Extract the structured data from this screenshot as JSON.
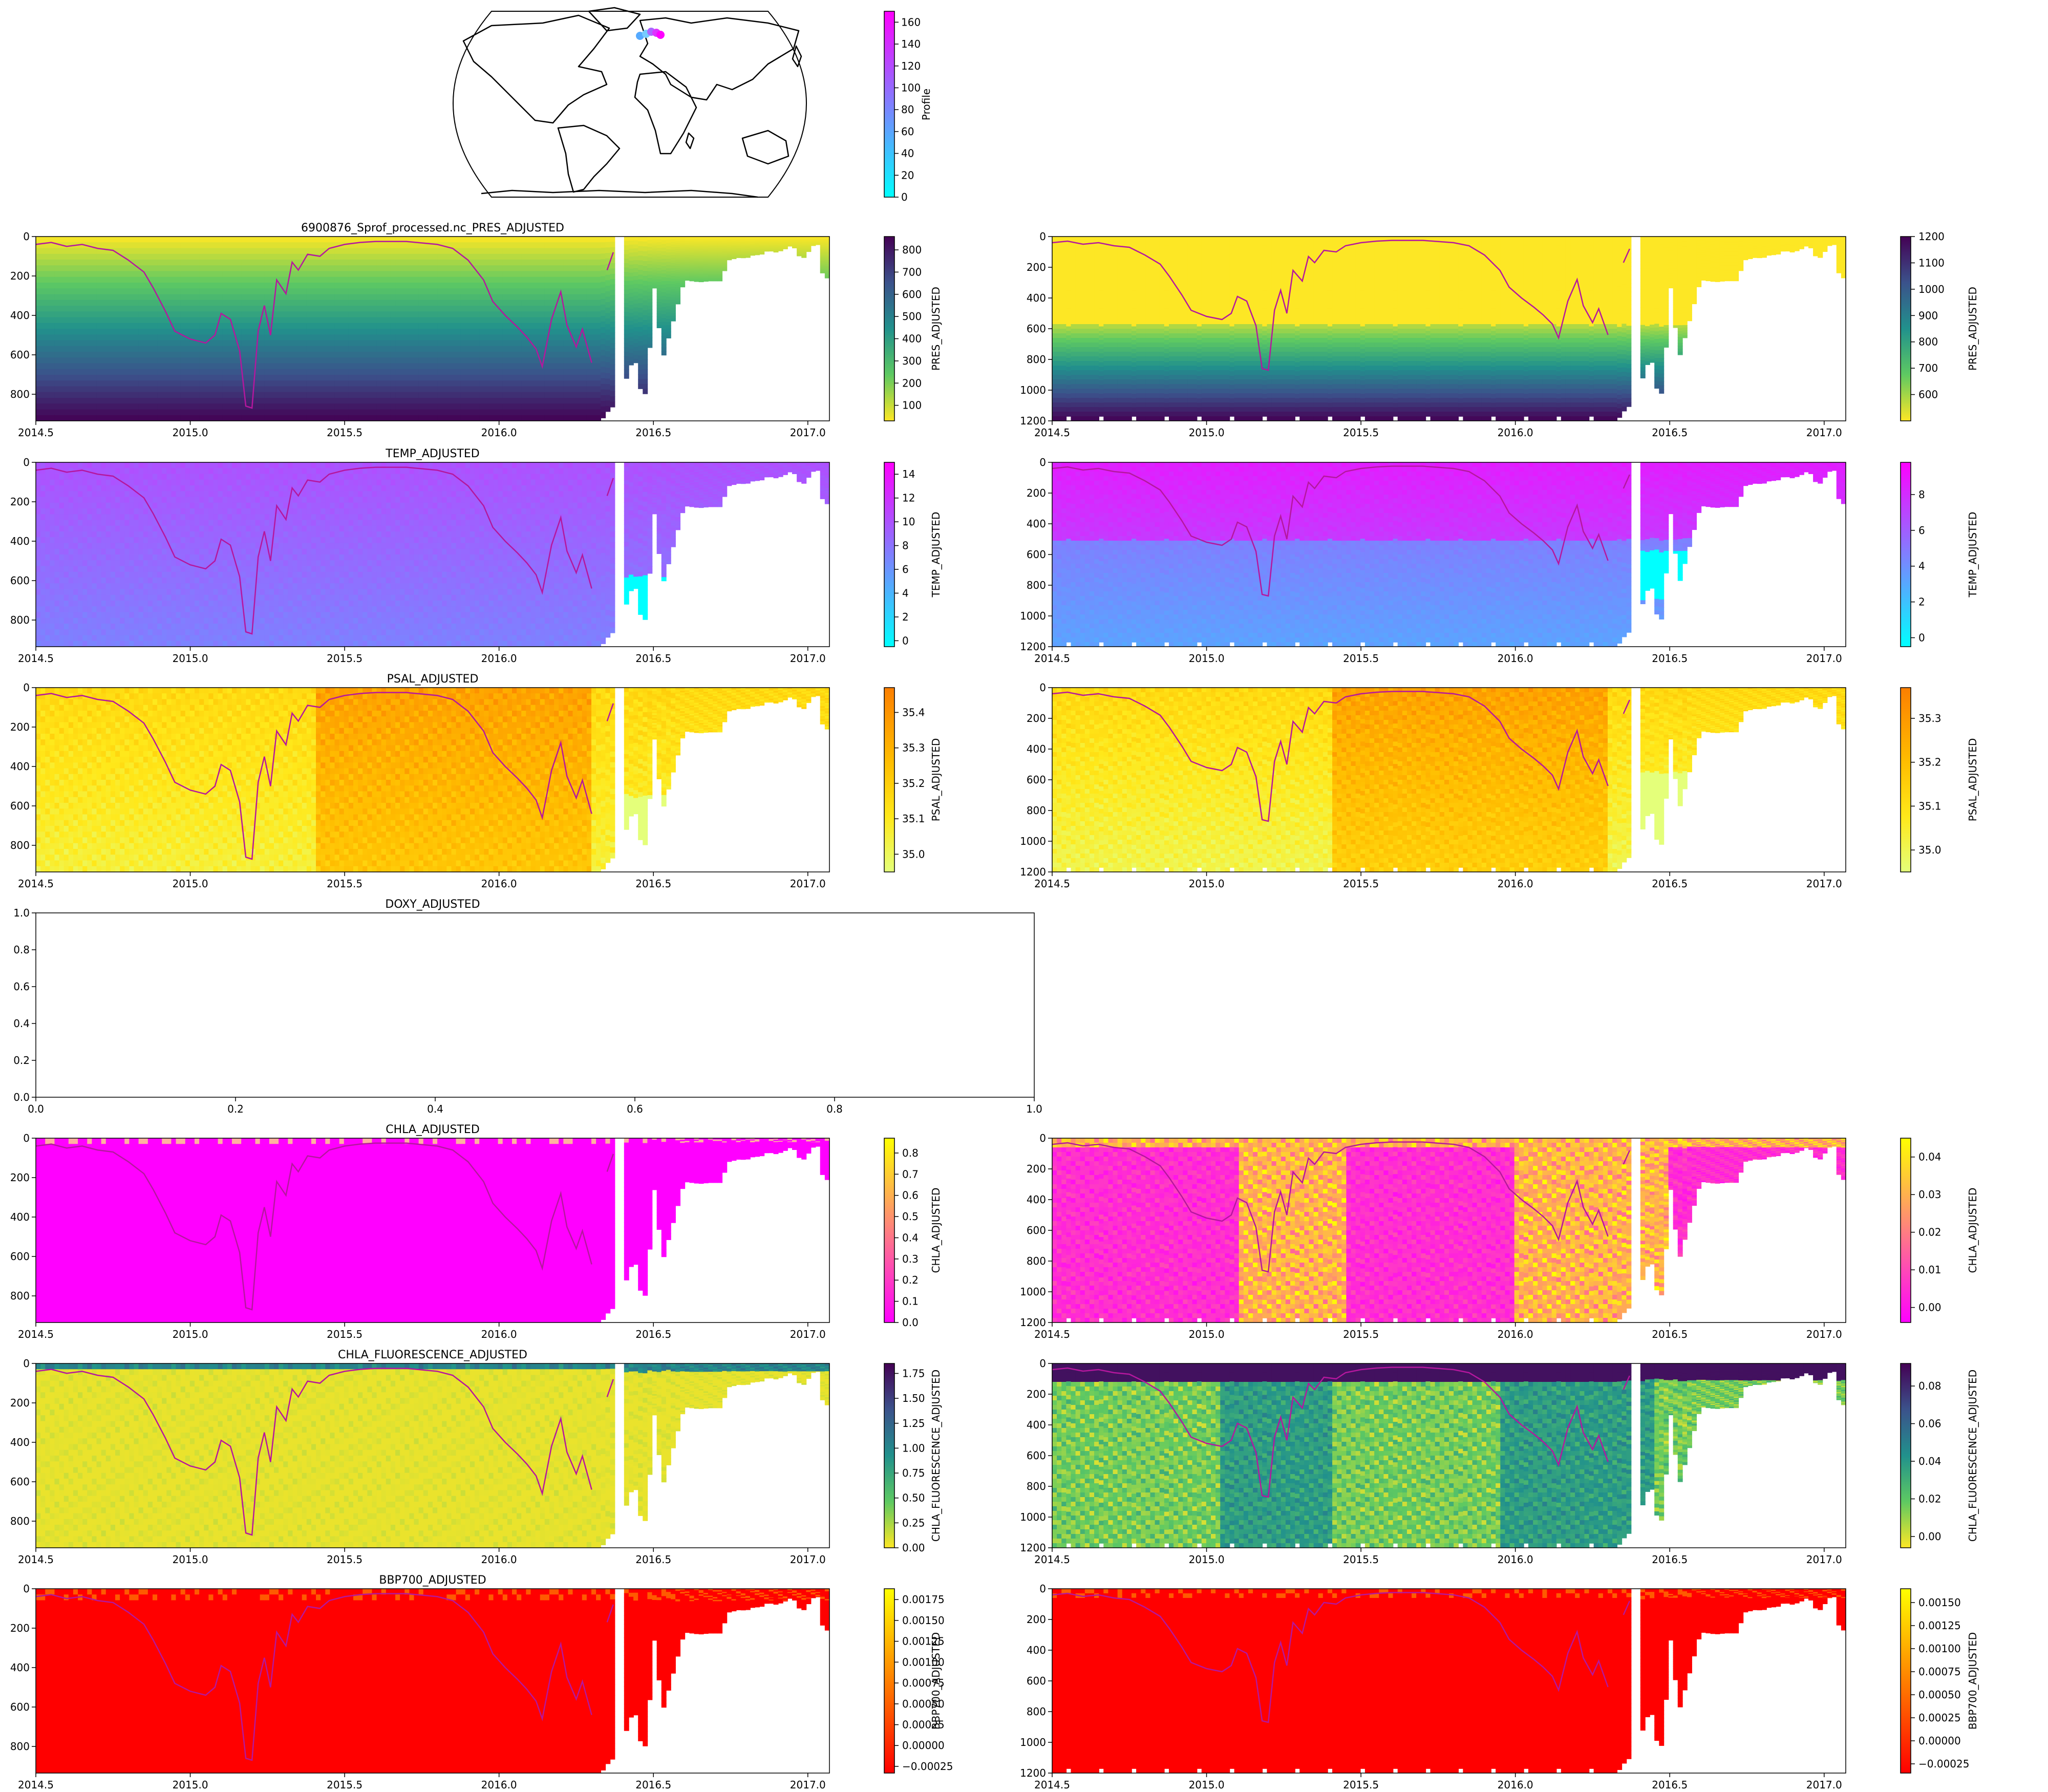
{
  "figure_title": "6900876_Sprof_processed.nc_PRES_ADJUSTED",
  "map": {
    "colorbar": {
      "label": "Profile",
      "ticks": [
        0,
        20,
        40,
        60,
        80,
        100,
        120,
        140,
        160
      ],
      "min": 0,
      "max": 170,
      "cmap": "cool"
    }
  },
  "x_ticks": [
    "2014.5",
    "2015.0",
    "2015.5",
    "2016.0",
    "2016.5",
    "2017.0"
  ],
  "x_tick_values": [
    2014.5,
    2015.0,
    2015.5,
    2016.0,
    2016.5,
    2017.0
  ],
  "x_range": [
    2014.5,
    2017.07
  ],
  "mld": [
    [
      2014.5,
      40
    ],
    [
      2014.55,
      30
    ],
    [
      2014.6,
      50
    ],
    [
      2014.65,
      40
    ],
    [
      2014.7,
      60
    ],
    [
      2014.75,
      70
    ],
    [
      2014.8,
      120
    ],
    [
      2014.85,
      180
    ],
    [
      2014.88,
      260
    ],
    [
      2014.92,
      380
    ],
    [
      2014.95,
      480
    ],
    [
      2015.0,
      520
    ],
    [
      2015.05,
      540
    ],
    [
      2015.08,
      500
    ],
    [
      2015.1,
      390
    ],
    [
      2015.13,
      420
    ],
    [
      2015.16,
      580
    ],
    [
      2015.18,
      860
    ],
    [
      2015.2,
      870
    ],
    [
      2015.22,
      480
    ],
    [
      2015.24,
      350
    ],
    [
      2015.26,
      500
    ],
    [
      2015.28,
      220
    ],
    [
      2015.31,
      290
    ],
    [
      2015.33,
      130
    ],
    [
      2015.35,
      170
    ],
    [
      2015.38,
      90
    ],
    [
      2015.42,
      100
    ],
    [
      2015.45,
      60
    ],
    [
      2015.5,
      40
    ],
    [
      2015.55,
      30
    ],
    [
      2015.6,
      25
    ],
    [
      2015.7,
      25
    ],
    [
      2015.8,
      40
    ],
    [
      2015.85,
      60
    ],
    [
      2015.9,
      120
    ],
    [
      2015.95,
      220
    ],
    [
      2015.98,
      330
    ],
    [
      2016.02,
      400
    ],
    [
      2016.06,
      460
    ],
    [
      2016.09,
      510
    ],
    [
      2016.12,
      570
    ],
    [
      2016.14,
      660
    ],
    [
      2016.17,
      420
    ],
    [
      2016.2,
      280
    ],
    [
      2016.22,
      450
    ],
    [
      2016.25,
      560
    ],
    [
      2016.27,
      470
    ],
    [
      2016.3,
      640
    ]
  ],
  "mld_fragment": [
    [
      2016.35,
      170
    ],
    [
      2016.37,
      80
    ]
  ],
  "profile_col_max": [
    [
      2014.5,
      935
    ],
    [
      2016.33,
      935
    ],
    [
      2016.35,
      890
    ],
    [
      2016.38,
      845
    ],
    [
      2016.41,
      730
    ],
    [
      2016.43,
      640
    ],
    [
      2016.45,
      640
    ],
    [
      2016.46,
      810
    ],
    [
      2016.48,
      790
    ],
    [
      2016.5,
      220
    ],
    [
      2016.53,
      620
    ],
    [
      2016.6,
      220
    ],
    [
      2016.65,
      230
    ],
    [
      2016.68,
      225
    ],
    [
      2016.72,
      225
    ],
    [
      2016.74,
      120
    ],
    [
      2016.78,
      105
    ],
    [
      2016.8,
      110
    ],
    [
      2016.82,
      95
    ],
    [
      2016.85,
      90
    ],
    [
      2016.87,
      70
    ],
    [
      2016.9,
      80
    ],
    [
      2016.93,
      60
    ],
    [
      2016.95,
      40
    ],
    [
      2016.98,
      120
    ],
    [
      2017.01,
      60
    ],
    [
      2017.03,
      20
    ],
    [
      2017.05,
      210
    ],
    [
      2017.07,
      210
    ]
  ],
  "chart_data": [
    {
      "type": "heatmap",
      "title": "6900876_Sprof_processed.nc_PRES_ADJUSTED",
      "variable": "PRES_ADJUSTED",
      "xlim": [
        2014.5,
        2017.07
      ],
      "ylim": [
        935,
        0
      ],
      "yticks": [
        0,
        200,
        400,
        600,
        800
      ],
      "cbar_ticks": [
        "100",
        "200",
        "300",
        "400",
        "500",
        "600",
        "700",
        "800"
      ],
      "cbar_range": [
        30,
        860
      ],
      "cmap": "viridis_r"
    },
    {
      "type": "heatmap",
      "title": "",
      "variable": "PRES_ADJUSTED",
      "xlim": [
        2014.5,
        2017.07
      ],
      "ylim": [
        1200,
        0
      ],
      "yticks": [
        0,
        200,
        400,
        600,
        800,
        1000,
        1200
      ],
      "cbar_ticks": [
        "600",
        "700",
        "800",
        "900",
        "1000",
        "1100",
        "1200"
      ],
      "cbar_range": [
        500,
        1200
      ],
      "cmap": "viridis_r"
    },
    {
      "type": "heatmap",
      "title": "TEMP_ADJUSTED",
      "variable": "TEMP_ADJUSTED",
      "xlim": [
        2014.5,
        2017.07
      ],
      "ylim": [
        935,
        0
      ],
      "yticks": [
        0,
        200,
        400,
        600,
        800
      ],
      "cbar_ticks": [
        "0",
        "2",
        "4",
        "6",
        "8",
        "10",
        "12",
        "14"
      ],
      "cbar_range": [
        -0.5,
        15
      ],
      "cmap": "cool"
    },
    {
      "type": "heatmap",
      "title": "",
      "variable": "TEMP_ADJUSTED",
      "xlim": [
        2014.5,
        2017.07
      ],
      "ylim": [
        1200,
        0
      ],
      "yticks": [
        0,
        200,
        400,
        600,
        800,
        1000,
        1200
      ],
      "cbar_ticks": [
        "0",
        "2",
        "4",
        "6",
        "8"
      ],
      "cbar_range": [
        -0.5,
        9.8
      ],
      "cmap": "cool"
    },
    {
      "type": "heatmap",
      "title": "PSAL_ADJUSTED",
      "variable": "PSAL_ADJUSTED",
      "xlim": [
        2014.5,
        2017.07
      ],
      "ylim": [
        935,
        0
      ],
      "yticks": [
        0,
        200,
        400,
        600,
        800
      ],
      "cbar_ticks": [
        "35.0",
        "35.1",
        "35.2",
        "35.3",
        "35.4"
      ],
      "cbar_range": [
        34.95,
        35.47
      ],
      "cmap": "Wistia"
    },
    {
      "type": "heatmap",
      "title": "",
      "variable": "PSAL_ADJUSTED",
      "xlim": [
        2014.5,
        2017.07
      ],
      "ylim": [
        1200,
        0
      ],
      "yticks": [
        0,
        200,
        400,
        600,
        800,
        1000,
        1200
      ],
      "cbar_ticks": [
        "35.0",
        "35.1",
        "35.2",
        "35.3"
      ],
      "cbar_range": [
        34.95,
        35.37
      ],
      "cmap": "Wistia"
    },
    {
      "type": "empty",
      "title": "DOXY_ADJUSTED",
      "xlim": [
        0,
        1
      ],
      "ylim": [
        0,
        1
      ],
      "xticks": [
        "0.0",
        "0.2",
        "0.4",
        "0.6",
        "0.8",
        "1.0"
      ],
      "yticks": [
        "0.0",
        "0.2",
        "0.4",
        "0.6",
        "0.8",
        "1.0"
      ]
    },
    {
      "type": "heatmap",
      "title": "CHLA_ADJUSTED",
      "variable": "CHLA_ADJUSTED",
      "xlim": [
        2014.5,
        2017.07
      ],
      "ylim": [
        935,
        0
      ],
      "yticks": [
        0,
        200,
        400,
        600,
        800
      ],
      "cbar_ticks": [
        "0.0",
        "0.1",
        "0.2",
        "0.3",
        "0.4",
        "0.5",
        "0.6",
        "0.7",
        "0.8"
      ],
      "cbar_range": [
        0,
        0.87
      ],
      "cmap": "spring"
    },
    {
      "type": "heatmap",
      "title": "",
      "variable": "CHLA_ADJUSTED",
      "xlim": [
        2014.5,
        2017.07
      ],
      "ylim": [
        1200,
        0
      ],
      "yticks": [
        0,
        200,
        400,
        600,
        800,
        1000,
        1200
      ],
      "cbar_ticks": [
        "0.00",
        "0.01",
        "0.02",
        "0.03",
        "0.04"
      ],
      "cbar_range": [
        -0.004,
        0.045
      ],
      "cmap": "spring"
    },
    {
      "type": "heatmap",
      "title": "CHLA_FLUORESCENCE_ADJUSTED",
      "variable": "CHLA_FLUORESCENCE_ADJUSTED",
      "xlim": [
        2014.5,
        2017.07
      ],
      "ylim": [
        935,
        0
      ],
      "yticks": [
        0,
        200,
        400,
        600,
        800
      ],
      "cbar_ticks": [
        "0.00",
        "0.25",
        "0.50",
        "0.75",
        "1.00",
        "1.25",
        "1.50",
        "1.75"
      ],
      "cbar_range": [
        0,
        1.85
      ],
      "cmap": "viridis_r"
    },
    {
      "type": "heatmap",
      "title": "",
      "variable": "CHLA_FLUORESCENCE_ADJUSTED",
      "xlim": [
        2014.5,
        2017.07
      ],
      "ylim": [
        1200,
        0
      ],
      "yticks": [
        0,
        200,
        400,
        600,
        800,
        1000,
        1200
      ],
      "cbar_ticks": [
        "0.00",
        "0.02",
        "0.04",
        "0.06",
        "0.08"
      ],
      "cbar_range": [
        -0.006,
        0.092
      ],
      "cmap": "viridis_r"
    },
    {
      "type": "heatmap",
      "title": "BBP700_ADJUSTED",
      "variable": "BBP700_ADJUSTED",
      "xlim": [
        2014.5,
        2017.07
      ],
      "ylim": [
        935,
        0
      ],
      "yticks": [
        0,
        200,
        400,
        600,
        800
      ],
      "cbar_ticks": [
        "−0.00025",
        "0.00000",
        "0.00025",
        "0.00050",
        "0.00075",
        "0.00100",
        "0.00125",
        "0.00150",
        "0.00175"
      ],
      "cbar_range": [
        -0.00033,
        0.00188
      ],
      "cmap": "autumn"
    },
    {
      "type": "heatmap",
      "title": "",
      "variable": "BBP700_ADJUSTED",
      "xlim": [
        2014.5,
        2017.07
      ],
      "ylim": [
        1200,
        0
      ],
      "yticks": [
        0,
        200,
        400,
        600,
        800,
        1000,
        1200
      ],
      "cbar_ticks": [
        "−0.00025",
        "0.00000",
        "0.00025",
        "0.00050",
        "0.00075",
        "0.00100",
        "0.00125",
        "0.00150"
      ],
      "cbar_range": [
        -0.00035,
        0.00165
      ],
      "cmap": "autumn"
    }
  ]
}
